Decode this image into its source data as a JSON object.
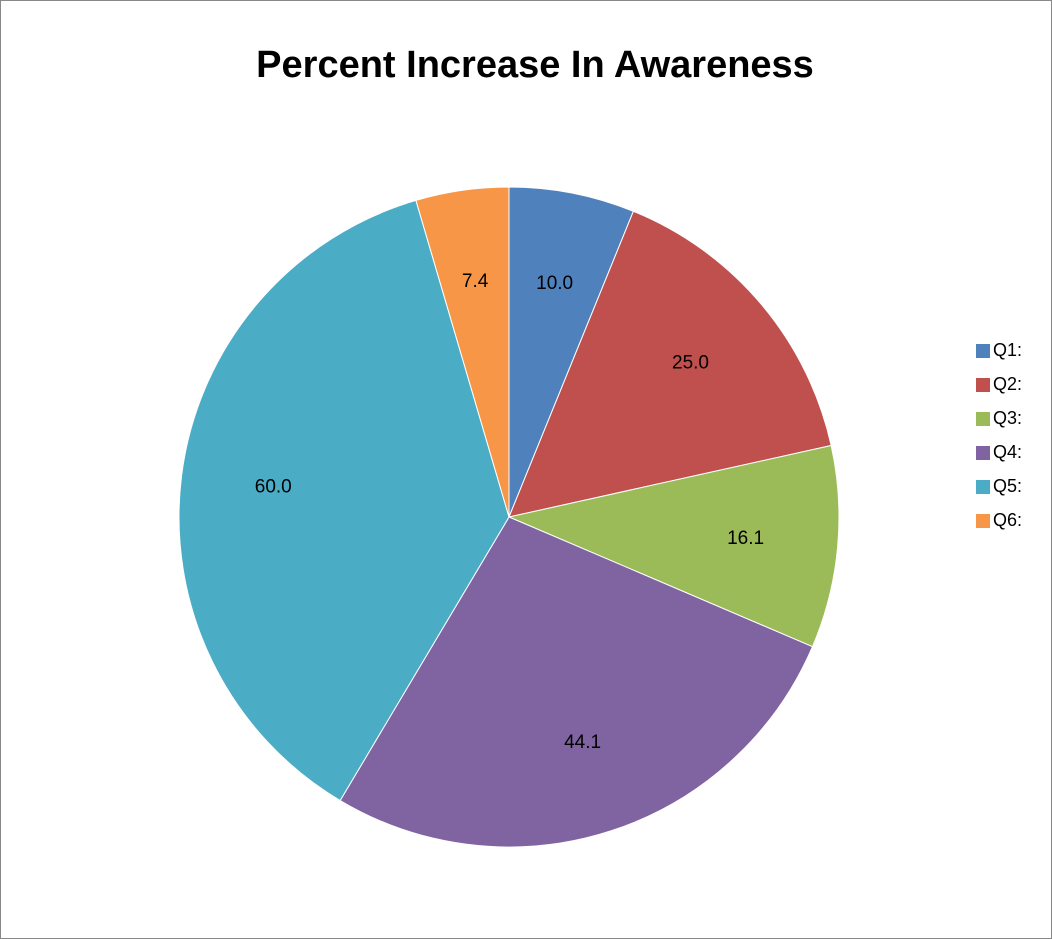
{
  "chart_data": {
    "type": "pie",
    "title": "Percent Increase In Awareness",
    "categories": [
      "Q1:",
      "Q2:",
      "Q3:",
      "Q4:",
      "Q5:",
      "Q6:"
    ],
    "values": [
      10.0,
      25.0,
      16.1,
      44.1,
      60.0,
      7.4
    ],
    "data_labels": [
      "10.0",
      "25.0",
      "16.1",
      "44.1",
      "60.0",
      "7.4"
    ],
    "colors": [
      "#4F81BD",
      "#C0504D",
      "#9BBB59",
      "#8064A2",
      "#4BACC6",
      "#F79646"
    ],
    "legend_position": "right",
    "start_angle": "12 o'clock",
    "direction": "clockwise"
  }
}
